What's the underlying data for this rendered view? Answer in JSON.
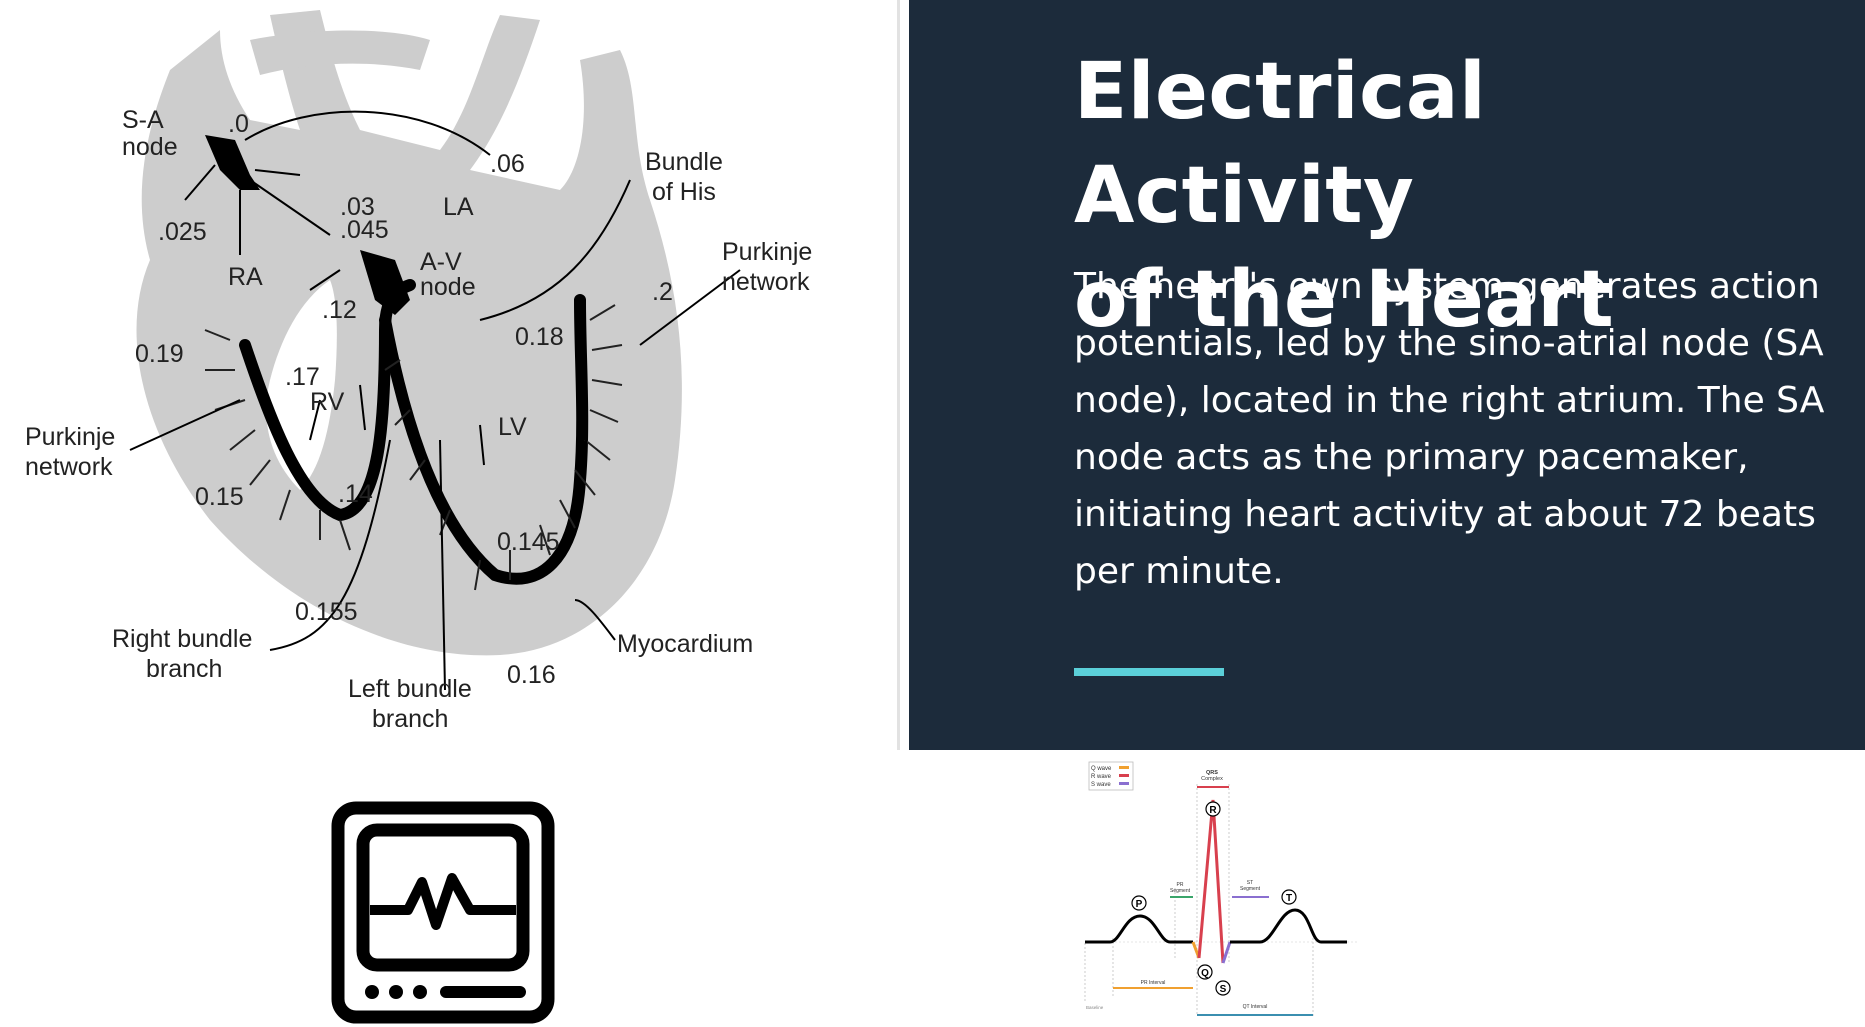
{
  "slide": {
    "title_line1": "Electrical Activity",
    "title_line2": "of the Heart",
    "body": "The heart's own system generates action potentials, led by the sino-atrial node (SA node), located in the right atrium. The SA node acts as the primary pacemaker, initiating heart activity at about 72 beats per minute.",
    "accent_color": "#5bd0d9",
    "panel_color": "#1c2b3b"
  },
  "heart_diagram": {
    "labels": {
      "sa_node_1": "S-A",
      "sa_node_2": "node",
      "t0": ".0",
      "t06": ".06",
      "t025": ".025",
      "t03": ".03",
      "t045": ".045",
      "la": "LA",
      "ra": "RA",
      "bundle_his_1": "Bundle",
      "bundle_his_2": "of His",
      "av_node_1": "A-V",
      "av_node_2": "node",
      "t12": ".12",
      "t2": ".2",
      "purkinje_r_1": "Purkinje",
      "purkinje_r_2": "network",
      "t019": "0.19",
      "t17": ".17",
      "rv": "RV",
      "t018": "0.18",
      "lv": "LV",
      "purkinje_l_1": "Purkinje",
      "purkinje_l_2": "network",
      "t015": "0.15",
      "t14": ".14",
      "t0145": "0.145",
      "t0155": "0.155",
      "rbb_1": "Right bundle",
      "rbb_2": "branch",
      "lbb_1": "Left bundle",
      "lbb_2": "branch",
      "t016": "0.16",
      "myocardium": "Myocardium"
    }
  },
  "ecg_diagram": {
    "legend": [
      "Q wave",
      "R wave",
      "S wave"
    ],
    "legend_colors": [
      "#f0a030",
      "#d8404e",
      "#8a6fd0"
    ],
    "qrs_label_1": "QRS",
    "qrs_label_2": "Complex",
    "pr_segment_1": "PR",
    "pr_segment_2": "Segment",
    "st_segment_1": "ST",
    "st_segment_2": "Segment",
    "pr_interval": "PR Interval",
    "qt_interval": "QT Interval",
    "baseline": "Baseline",
    "waves": {
      "p": "P",
      "q": "Q",
      "r": "R",
      "s": "S",
      "t": "T"
    }
  },
  "icons": {
    "monitor": "heart-monitor-icon"
  }
}
